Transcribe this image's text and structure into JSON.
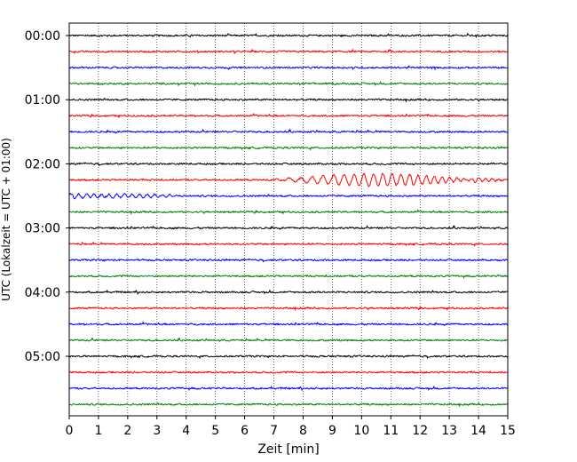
{
  "chart_data": {
    "type": "line",
    "title": "",
    "xlabel": "Zeit  [min]",
    "ylabel": "UTC (Lokalzeit = UTC + 01:00)",
    "xlim": [
      0,
      15
    ],
    "x_ticks": [
      "0",
      "1",
      "2",
      "3",
      "4",
      "5",
      "6",
      "7",
      "8",
      "9",
      "10",
      "11",
      "12",
      "13",
      "14",
      "15"
    ],
    "y_tick_labels": [
      "00:00",
      "01:00",
      "02:00",
      "03:00",
      "04:00",
      "05:00"
    ],
    "trace_interval_min": 15,
    "trace_count": 24,
    "trace_colors": [
      "#000000",
      "#ff0000",
      "#0000ff",
      "#008000"
    ],
    "grid": "vertical dotted",
    "events": [
      {
        "trace_start": "02:15",
        "x_start": 7.0,
        "x_end": 15.0,
        "description_visible": false
      },
      {
        "trace_start": "02:30",
        "x_start": 0.0,
        "x_end": 3.6,
        "description_visible": false
      }
    ]
  }
}
